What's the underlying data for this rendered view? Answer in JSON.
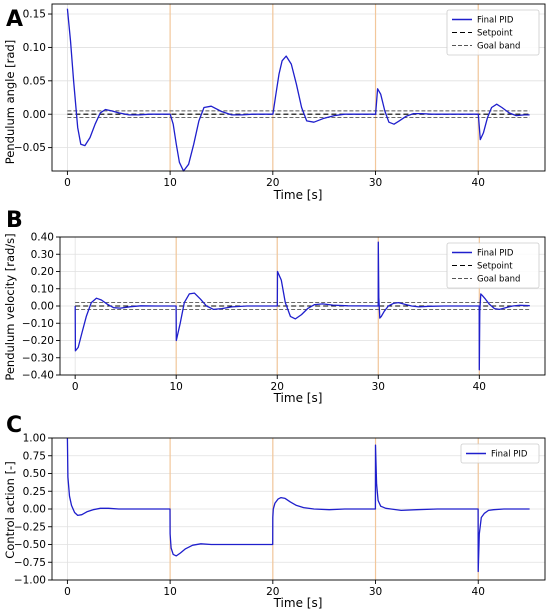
{
  "figure": {
    "background": "#ffffff"
  },
  "style": {
    "series_color": "#1f1fcc",
    "setpoint_color": "#000000",
    "band_color": "#555555",
    "disturbance_line_color": "#f2c79b",
    "grid_color": "#e0e0e0"
  },
  "chart_data": [
    {
      "panel_letter": "A",
      "type": "line",
      "xlabel": "Time [s]",
      "ylabel": "Pendulum angle [rad]",
      "xlim": [
        -1.5,
        46.5
      ],
      "ylim": [
        -0.085,
        0.165
      ],
      "xticks": [
        0,
        10,
        20,
        30,
        40
      ],
      "xtick_labels": [
        "0",
        "10",
        "20",
        "30",
        "40"
      ],
      "yticks": [
        0.15,
        0.1,
        0.05,
        0.0,
        -0.05
      ],
      "ytick_labels": [
        "0.15",
        "0.10",
        "0.05",
        "0.00",
        "−0.05"
      ],
      "grid": true,
      "disturbance_times": [
        10,
        20,
        30,
        40
      ],
      "legend_position": "top-right",
      "legend": [
        {
          "label": "Final PID",
          "style": "solid"
        },
        {
          "label": "Setpoint",
          "style": "dashed"
        },
        {
          "label": "Goal band",
          "style": "dashed-thin"
        }
      ],
      "setpoint": 0.0,
      "goal_band": [
        -0.005,
        0.005
      ],
      "series": [
        {
          "name": "Final PID",
          "x": [
            0,
            0.3,
            0.6,
            1.0,
            1.3,
            1.7,
            2.2,
            2.7,
            3.2,
            3.7,
            4.3,
            5.0,
            6.0,
            7.0,
            8.0,
            9.0,
            9.99,
            10.01,
            10.3,
            10.6,
            10.9,
            11.3,
            11.8,
            12.3,
            12.8,
            13.3,
            14.0,
            15.0,
            16.0,
            17.0,
            18.0,
            19.0,
            19.99,
            20.01,
            20.3,
            20.6,
            20.9,
            21.3,
            21.8,
            22.3,
            22.8,
            23.3,
            24.0,
            25.0,
            26.0,
            27.0,
            28.0,
            29.0,
            29.99,
            30.01,
            30.2,
            30.5,
            30.9,
            31.3,
            31.8,
            32.3,
            33.0,
            33.7,
            34.5,
            35.5,
            36.5,
            37.5,
            38.5,
            39.5,
            39.99,
            40.01,
            40.2,
            40.5,
            40.9,
            41.3,
            41.8,
            42.3,
            43.0,
            43.7,
            44.5,
            45.0
          ],
          "values": [
            0.158,
            0.11,
            0.05,
            -0.02,
            -0.045,
            -0.047,
            -0.035,
            -0.015,
            0.002,
            0.007,
            0.005,
            0.002,
            -0.001,
            -0.001,
            0.0,
            0.0,
            0.0,
            0.0,
            -0.015,
            -0.045,
            -0.072,
            -0.085,
            -0.075,
            -0.045,
            -0.01,
            0.01,
            0.012,
            0.004,
            -0.001,
            -0.001,
            0.0,
            0.0,
            0.0,
            0.0,
            0.03,
            0.06,
            0.08,
            0.087,
            0.075,
            0.045,
            0.01,
            -0.01,
            -0.012,
            -0.006,
            -0.002,
            0.0,
            0.0,
            0.0,
            0.0,
            0.0,
            0.038,
            0.03,
            0.005,
            -0.012,
            -0.015,
            -0.01,
            -0.003,
            0.001,
            0.001,
            0.0,
            0.0,
            0.0,
            0.0,
            0.0,
            0.0,
            0.0,
            -0.038,
            -0.028,
            -0.005,
            0.01,
            0.015,
            0.01,
            0.002,
            -0.002,
            -0.001,
            -0.001
          ]
        }
      ]
    },
    {
      "panel_letter": "B",
      "type": "line",
      "xlabel": "Time [s]",
      "ylabel": "Pendulum velocity [rad/s]",
      "xlim": [
        -1.5,
        46.5
      ],
      "ylim": [
        -0.4,
        0.4
      ],
      "xticks": [
        0,
        10,
        20,
        30,
        40
      ],
      "xtick_labels": [
        "0",
        "10",
        "20",
        "30",
        "40"
      ],
      "yticks": [
        0.4,
        0.3,
        0.2,
        0.1,
        0.0,
        -0.1,
        -0.2,
        -0.3,
        -0.4
      ],
      "ytick_labels": [
        "0.40",
        "0.30",
        "0.20",
        "0.10",
        "0.00",
        "−0.10",
        "−0.20",
        "−0.30",
        "−0.40"
      ],
      "grid": true,
      "disturbance_times": [
        10,
        20,
        30,
        40
      ],
      "legend_position": "top-right",
      "legend": [
        {
          "label": "Final PID",
          "style": "solid"
        },
        {
          "label": "Setpoint",
          "style": "dashed"
        },
        {
          "label": "Goal band",
          "style": "dashed-thin"
        }
      ],
      "setpoint": 0.0,
      "goal_band": [
        -0.02,
        0.02
      ],
      "series": [
        {
          "name": "Final PID",
          "x": [
            0,
            0.02,
            0.3,
            0.7,
            1.1,
            1.6,
            2.1,
            2.6,
            3.2,
            3.8,
            4.5,
            5.5,
            6.5,
            8.0,
            9.99,
            10.01,
            10.4,
            10.8,
            11.3,
            11.8,
            12.4,
            13.0,
            13.7,
            14.5,
            15.5,
            17.0,
            19.99,
            20.01,
            20.03,
            20.4,
            20.8,
            21.3,
            21.8,
            22.4,
            23.0,
            23.7,
            24.5,
            25.5,
            27.0,
            29.99,
            30.0,
            30.05,
            30.15,
            30.3,
            30.6,
            31.0,
            31.5,
            32.0,
            32.6,
            33.3,
            34.0,
            35.0,
            36.5,
            39.99,
            40.0,
            40.05,
            40.15,
            40.3,
            40.6,
            41.0,
            41.5,
            42.0,
            42.6,
            43.3,
            44.0,
            45.0
          ],
          "values": [
            0.0,
            -0.26,
            -0.24,
            -0.15,
            -0.06,
            0.02,
            0.045,
            0.035,
            0.01,
            -0.01,
            -0.012,
            -0.004,
            0.001,
            0.0,
            0.0,
            -0.2,
            -0.1,
            0.02,
            0.07,
            0.075,
            0.04,
            0.0,
            -0.02,
            -0.015,
            -0.005,
            0.0,
            0.0,
            0.0,
            0.2,
            0.15,
            0.02,
            -0.06,
            -0.075,
            -0.05,
            -0.015,
            0.008,
            0.012,
            0.005,
            0.001,
            0.0,
            0.37,
            0.05,
            -0.07,
            -0.06,
            -0.03,
            0.0,
            0.015,
            0.02,
            0.01,
            0.0,
            -0.005,
            -0.002,
            0.0,
            0.0,
            -0.37,
            -0.03,
            0.07,
            0.06,
            0.04,
            0.01,
            -0.015,
            -0.02,
            -0.01,
            0.0,
            0.004,
            0.002
          ]
        }
      ]
    },
    {
      "panel_letter": "C",
      "type": "line",
      "xlabel": "Time [s]",
      "ylabel": "Control action [-]",
      "xlim": [
        -1.5,
        46.5
      ],
      "ylim": [
        -1.0,
        1.0
      ],
      "xticks": [
        0,
        10,
        20,
        30,
        40
      ],
      "xtick_labels": [
        "0",
        "10",
        "20",
        "30",
        "40"
      ],
      "yticks": [
        1.0,
        0.75,
        0.5,
        0.25,
        0.0,
        -0.25,
        -0.5,
        -0.75,
        -1.0
      ],
      "ytick_labels": [
        "1.00",
        "0.75",
        "0.50",
        "0.25",
        "0.00",
        "−0.25",
        "−0.50",
        "−0.75",
        "−1.00"
      ],
      "grid": true,
      "disturbance_times": [
        10,
        20,
        30,
        40
      ],
      "legend_position": "top-right",
      "legend": [
        {
          "label": "Final PID",
          "style": "solid"
        }
      ],
      "series": [
        {
          "name": "Final PID",
          "x": [
            0,
            0.05,
            0.2,
            0.4,
            0.7,
            1.0,
            1.4,
            1.9,
            2.5,
            3.2,
            4.0,
            5.0,
            6.5,
            8.0,
            9.99,
            10.0,
            10.1,
            10.3,
            10.6,
            11.0,
            11.5,
            12.2,
            13.0,
            14.0,
            15.5,
            17.0,
            19.99,
            20.0,
            20.05,
            20.2,
            20.5,
            20.8,
            21.2,
            21.7,
            22.3,
            23.0,
            24.0,
            25.5,
            27.0,
            29.99,
            30.0,
            30.1,
            30.25,
            30.5,
            31.0,
            31.5,
            32.5,
            34.0,
            36.0,
            39.99,
            40.0,
            40.1,
            40.3,
            40.6,
            41.0,
            41.5,
            42.5,
            43.5,
            45.0
          ],
          "values": [
            1.0,
            0.45,
            0.18,
            0.05,
            -0.05,
            -0.09,
            -0.08,
            -0.04,
            -0.01,
            0.01,
            0.01,
            0.0,
            0.0,
            0.0,
            0.0,
            -0.35,
            -0.55,
            -0.64,
            -0.66,
            -0.62,
            -0.56,
            -0.51,
            -0.49,
            -0.5,
            -0.5,
            -0.5,
            -0.5,
            -0.12,
            0.0,
            0.08,
            0.14,
            0.16,
            0.15,
            0.1,
            0.05,
            0.02,
            0.0,
            -0.01,
            0.0,
            0.0,
            0.9,
            0.35,
            0.12,
            0.04,
            0.01,
            0.0,
            -0.02,
            -0.01,
            0.0,
            0.0,
            -0.88,
            -0.35,
            -0.12,
            -0.06,
            -0.02,
            -0.01,
            0.0,
            0.0,
            0.0
          ]
        }
      ]
    }
  ]
}
